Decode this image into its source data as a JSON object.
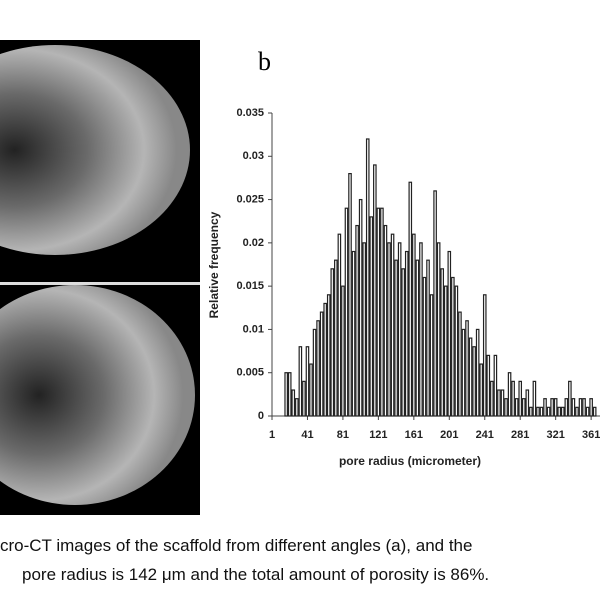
{
  "panel_label": "b",
  "chart_data": {
    "type": "bar",
    "x_label": "pore radius (micrometer)",
    "y_label": "Relative frequency",
    "color": "#222222",
    "x": [
      17,
      21,
      25,
      29,
      33,
      37,
      41,
      45,
      49,
      53,
      57,
      61,
      65,
      69,
      73,
      77,
      81,
      85,
      89,
      93,
      97,
      101,
      105,
      109,
      113,
      117,
      121,
      125,
      129,
      133,
      137,
      141,
      145,
      149,
      153,
      157,
      161,
      165,
      169,
      173,
      177,
      181,
      185,
      189,
      193,
      197,
      201,
      205,
      209,
      213,
      217,
      221,
      225,
      229,
      233,
      237,
      241,
      245,
      249,
      253,
      257,
      261,
      265,
      269,
      273,
      277,
      281,
      285,
      289,
      293,
      297,
      301,
      305,
      309,
      313,
      317,
      321,
      325,
      329,
      333,
      337,
      341,
      345,
      349,
      353,
      357,
      361,
      365
    ],
    "values": [
      0.005,
      0.005,
      0.003,
      0.002,
      0.008,
      0.004,
      0.008,
      0.006,
      0.01,
      0.011,
      0.012,
      0.013,
      0.014,
      0.017,
      0.018,
      0.021,
      0.015,
      0.024,
      0.028,
      0.019,
      0.022,
      0.025,
      0.02,
      0.032,
      0.023,
      0.029,
      0.024,
      0.024,
      0.022,
      0.02,
      0.021,
      0.018,
      0.02,
      0.017,
      0.019,
      0.027,
      0.021,
      0.018,
      0.02,
      0.016,
      0.018,
      0.014,
      0.026,
      0.02,
      0.017,
      0.015,
      0.019,
      0.016,
      0.015,
      0.012,
      0.01,
      0.011,
      0.009,
      0.008,
      0.01,
      0.006,
      0.014,
      0.007,
      0.004,
      0.007,
      0.003,
      0.003,
      0.002,
      0.005,
      0.004,
      0.002,
      0.004,
      0.002,
      0.003,
      0.001,
      0.004,
      0.001,
      0.001,
      0.002,
      0.001,
      0.002,
      0.002,
      0.001,
      0.001,
      0.002,
      0.004,
      0.002,
      0.001,
      0.002,
      0.002,
      0.001,
      0.002,
      0.001
    ],
    "xlim": [
      1,
      371
    ],
    "xticks": [
      1,
      41,
      81,
      121,
      161,
      201,
      241,
      281,
      321,
      361
    ],
    "ylim": [
      0,
      0.035
    ],
    "yticks": [
      0,
      0.005,
      0.01,
      0.015,
      0.02,
      0.025,
      0.03,
      0.035
    ]
  },
  "caption": {
    "lines": [
      "cro-CT images of the scaffold from different angles (a), and the",
      "pore radius is 142 μm and the total amount of porosity is 86%."
    ]
  }
}
